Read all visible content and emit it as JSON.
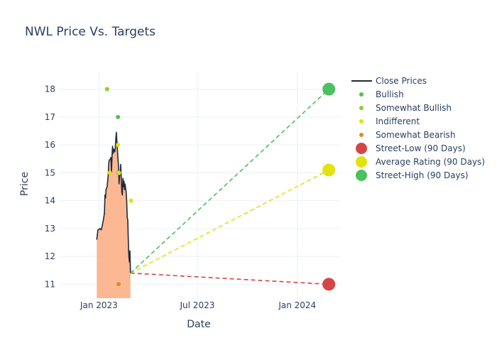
{
  "chart_data": {
    "type": "line",
    "title": "NWL Price Vs. Targets",
    "xlabel": "Date",
    "ylabel": "Price",
    "xlim": [
      "2022-10-18",
      "2024-03-21"
    ],
    "ylim": [
      10.5,
      18.6
    ],
    "x_ticks": [
      {
        "date": "2023-01-01",
        "label": "Jan 2023"
      },
      {
        "date": "2023-07-01",
        "label": "Jul 2023"
      },
      {
        "date": "2024-01-01",
        "label": "Jan 2024"
      }
    ],
    "y_ticks": [
      11,
      12,
      13,
      14,
      15,
      16,
      17,
      18
    ],
    "grid": true,
    "legend_position": "right",
    "colors": {
      "close": "#1f2b3a",
      "area": "#fbb48c",
      "bullish": "#52c152",
      "somewhat_bullish": "#8ccf2a",
      "indifferent": "#e2e20f",
      "somewhat_bearish": "#d8902a",
      "street_low": "#d64545",
      "average": "#e2e20f",
      "street_high": "#4cc05c"
    },
    "close_prices": [
      [
        "2022-12-28",
        12.6
      ],
      [
        "2022-12-30",
        12.95
      ],
      [
        "2023-01-03",
        13.0
      ],
      [
        "2023-01-05",
        12.95
      ],
      [
        "2023-01-07",
        13.1
      ],
      [
        "2023-01-09",
        13.3
      ],
      [
        "2023-01-11",
        13.55
      ],
      [
        "2023-01-12",
        14.2
      ],
      [
        "2023-01-13",
        14.1
      ],
      [
        "2023-01-14",
        14.4
      ],
      [
        "2023-01-16",
        14.5
      ],
      [
        "2023-01-18",
        14.9
      ],
      [
        "2023-01-19",
        15.35
      ],
      [
        "2023-01-20",
        15.45
      ],
      [
        "2023-01-22",
        15.5
      ],
      [
        "2023-01-23",
        15.55
      ],
      [
        "2023-01-24",
        15.0
      ],
      [
        "2023-01-25",
        15.6
      ],
      [
        "2023-01-26",
        15.95
      ],
      [
        "2023-01-27",
        15.7
      ],
      [
        "2023-01-28",
        15.85
      ],
      [
        "2023-01-30",
        15.75
      ],
      [
        "2023-01-31",
        15.9
      ],
      [
        "2023-02-01",
        16.2
      ],
      [
        "2023-02-02",
        16.45
      ],
      [
        "2023-02-03",
        16.1
      ],
      [
        "2023-02-04",
        15.8
      ],
      [
        "2023-02-06",
        15.2
      ],
      [
        "2023-02-07",
        14.6
      ],
      [
        "2023-02-08",
        14.9
      ],
      [
        "2023-02-09",
        15.0
      ],
      [
        "2023-02-10",
        15.3
      ],
      [
        "2023-02-11",
        14.8
      ],
      [
        "2023-02-12",
        14.3
      ],
      [
        "2023-02-13",
        14.2
      ],
      [
        "2023-02-14",
        14.8
      ],
      [
        "2023-02-15",
        14.5
      ],
      [
        "2023-02-16",
        14.7
      ],
      [
        "2023-02-17",
        14.4
      ],
      [
        "2023-02-18",
        14.6
      ],
      [
        "2023-02-20",
        14.3
      ],
      [
        "2023-02-21",
        14.0
      ],
      [
        "2023-02-22",
        13.4
      ],
      [
        "2023-02-23",
        13.3
      ],
      [
        "2023-02-24",
        12.6
      ],
      [
        "2023-02-25",
        12.0
      ],
      [
        "2023-02-26",
        11.8
      ],
      [
        "2023-02-27",
        12.2
      ],
      [
        "2023-02-28",
        11.4
      ]
    ],
    "ratings": [
      {
        "series": "Bullish",
        "date": "2023-02-05",
        "value": 17
      },
      {
        "series": "Bullish",
        "date": "2023-02-06",
        "value": 15
      },
      {
        "series": "Somewhat Bullish",
        "date": "2023-01-16",
        "value": 18
      },
      {
        "series": "Indifferent",
        "date": "2023-02-05",
        "value": 16
      },
      {
        "series": "Indifferent",
        "date": "2023-02-07",
        "value": 15
      },
      {
        "series": "Indifferent",
        "date": "2023-01-21",
        "value": 15
      },
      {
        "series": "Indifferent",
        "date": "2023-03-01",
        "value": 14
      },
      {
        "series": "Somewhat Bearish",
        "date": "2023-02-06",
        "value": 11
      }
    ],
    "forecast_start": {
      "date": "2023-02-28",
      "value": 11.4
    },
    "targets": [
      {
        "series": "Street-Low (90 Days)",
        "date": "2024-02-28",
        "value": 11.0
      },
      {
        "series": "Average Rating (90 Days)",
        "date": "2024-02-28",
        "value": 15.1
      },
      {
        "series": "Street-High (90 Days)",
        "date": "2024-02-28",
        "value": 18.0
      }
    ],
    "legend": [
      {
        "label": "Close Prices",
        "kind": "line",
        "color_key": "close"
      },
      {
        "label": "Bullish",
        "kind": "dot",
        "color_key": "bullish"
      },
      {
        "label": "Somewhat Bullish",
        "kind": "dot",
        "color_key": "somewhat_bullish"
      },
      {
        "label": "Indifferent",
        "kind": "dot",
        "color_key": "indifferent"
      },
      {
        "label": "Somewhat Bearish",
        "kind": "dot",
        "color_key": "somewhat_bearish"
      },
      {
        "label": "Street-Low (90 Days)",
        "kind": "big",
        "color_key": "street_low"
      },
      {
        "label": "Average Rating (90 Days)",
        "kind": "big",
        "color_key": "average"
      },
      {
        "label": "Street-High (90 Days)",
        "kind": "big",
        "color_key": "street_high"
      }
    ]
  }
}
